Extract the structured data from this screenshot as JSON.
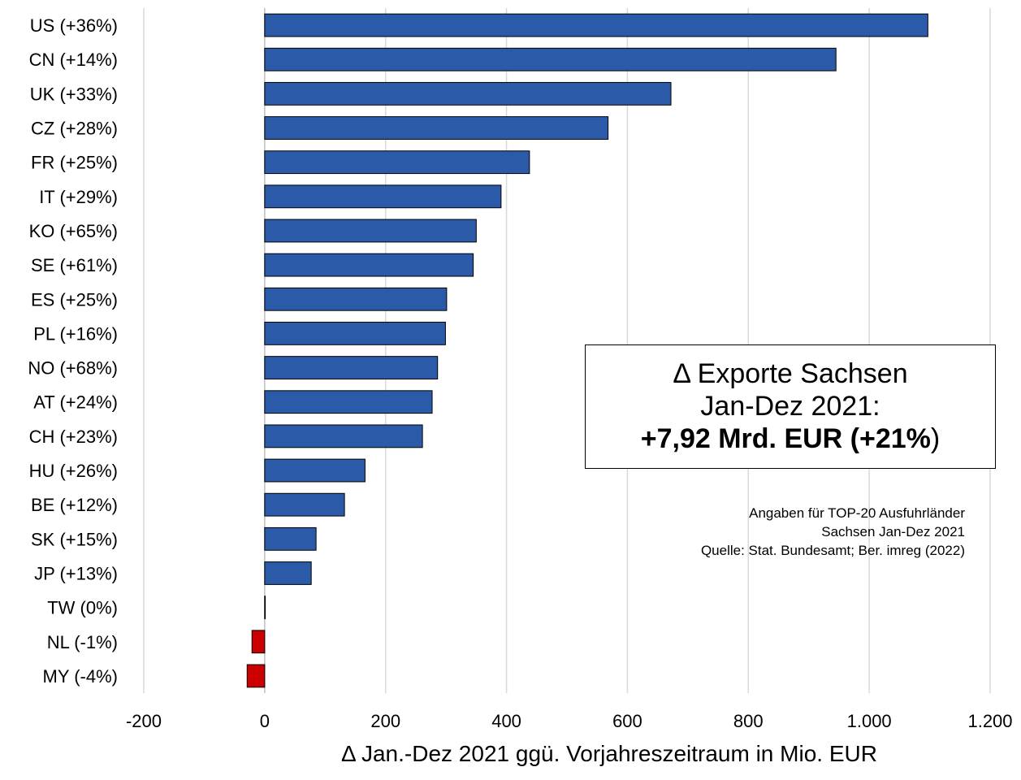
{
  "chart_data": {
    "type": "bar",
    "orientation": "horizontal",
    "categories": [
      "US (+36%)",
      "CN (+14%)",
      "UK (+33%)",
      "CZ (+28%)",
      "FR (+25%)",
      "IT (+29%)",
      "KO (+65%)",
      "SE (+61%)",
      "ES (+25%)",
      "PL (+16%)",
      "NO (+68%)",
      "AT (+24%)",
      "CH (+23%)",
      "HU (+26%)",
      "BE (+12%)",
      "SK (+15%)",
      "JP (+13%)",
      "TW (0%)",
      "NL (-1%)",
      "MY (-4%)"
    ],
    "values": [
      1097,
      945,
      672,
      568,
      438,
      391,
      350,
      345,
      301,
      299,
      286,
      277,
      261,
      166,
      132,
      85,
      77,
      1,
      -21,
      -29
    ],
    "xlim": [
      -200,
      1200
    ],
    "xticks": [
      -200,
      0,
      200,
      400,
      600,
      800,
      1000,
      1200
    ],
    "xtick_labels": [
      "-200",
      "0",
      "200",
      "400",
      "600",
      "800",
      "1.000",
      "1.200"
    ],
    "xlabel": "Δ Jan.-Dez 2021 ggü. Vorjahreszeitraum in Mio. EUR",
    "grid": "vertical",
    "colors": {
      "positive": "#2b5ba8",
      "negative": "#cc0000",
      "grid": "#d9d9d9",
      "zero_line": "#bfbfbf"
    }
  },
  "info_box": {
    "line1": "Δ Exporte Sachsen",
    "line2": "Jan-Dez 2021:",
    "line3_bold": "+7,92 Mrd. EUR (+21%",
    "line3_end": ")"
  },
  "source_note": {
    "line1": "Angaben für TOP-20 Ausfuhrländer",
    "line2": "Sachsen Jan-Dez 2021",
    "line3": "Quelle: Stat. Bundesamt; Ber. imreg (2022)"
  }
}
